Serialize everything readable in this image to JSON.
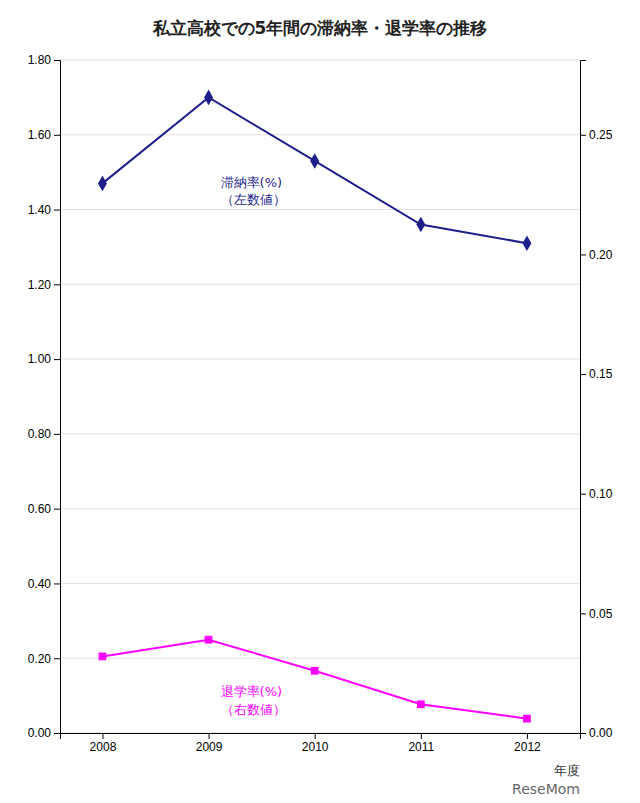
{
  "chart_data": {
    "type": "line",
    "title": "私立高校での5年間の滞納率・退学率の推移",
    "x_label": "年度",
    "x": [
      2008,
      2009,
      2010,
      2011,
      2012
    ],
    "xlim": [
      2007.6,
      2012.5
    ],
    "xticks": [
      2008,
      2009,
      2010,
      2011,
      2012
    ],
    "ylim": [
      0.0,
      1.8
    ],
    "yticks": [
      {
        "value": 0.0,
        "label": "0.00"
      },
      {
        "value": 0.2,
        "label": "0.20"
      },
      {
        "value": 0.4,
        "label": "0.40"
      },
      {
        "value": 0.6,
        "label": "0.60"
      },
      {
        "value": 0.8,
        "label": "0.80"
      },
      {
        "value": 1.0,
        "label": "1.00"
      },
      {
        "value": 1.2,
        "label": "1.20"
      },
      {
        "value": 1.4,
        "label": "1.40"
      },
      {
        "value": 1.6,
        "label": "1.60"
      },
      {
        "value": 1.8,
        "label": "1.80"
      }
    ],
    "y2lim": [
      0.0,
      0.28125
    ],
    "y2ticks": [
      {
        "value": 0.0,
        "label": "0.00"
      },
      {
        "value": 0.05,
        "label": "0.05"
      },
      {
        "value": 0.1,
        "label": "0.10"
      },
      {
        "value": 0.15,
        "label": "0.15"
      },
      {
        "value": 0.2,
        "label": "0.20"
      },
      {
        "value": 0.25,
        "label": "0.25"
      }
    ],
    "grid": true,
    "series": [
      {
        "color": "#1F1F8C",
        "marker": "diamond",
        "values": [
          1.47,
          1.7,
          1.53,
          1.36,
          1.31
        ]
      },
      {
        "color": "#FF00FF",
        "marker": "square",
        "axis": "y2",
        "values": [
          0.032,
          0.039,
          0.026,
          0.012,
          0.006
        ]
      }
    ],
    "annotations": [
      [
        "滞納率(%)",
        "（左数値）"
      ],
      [
        "退学率(%)",
        "（右数値）"
      ],
      [
        "ReseMom"
      ]
    ]
  }
}
